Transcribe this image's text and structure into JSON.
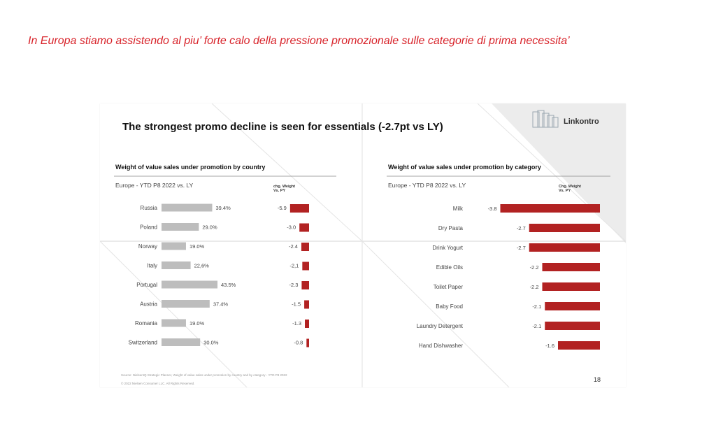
{
  "headline": "In Europa stiamo assistendo al piu’ forte calo della pressione  promozionale sulle categorie di prima necessita’",
  "slide": {
    "title": "The strongest promo decline is seen for essentials (-2.7pt vs LY)",
    "logo_text": "Linkontro",
    "page_number": "18",
    "source": "Source: NielsenIQ Strategic Planner, Weight of value sales under promotion by country and by category - YTD P8 2022",
    "copyright": "© 2022 Nielsen Consumer LLC. All Rights Reserved."
  },
  "colors": {
    "headline": "#d8232a",
    "share_bar": "#bdbdbd",
    "change_bar": "#b22222",
    "text": "#444444"
  },
  "chart_data": [
    {
      "type": "bar",
      "title": "Weight of value sales under promotion by country",
      "subtitle": "Europe - YTD P8 2022 vs. LY",
      "change_header": "chg. Weight Vs. PY",
      "categories": [
        "Russia",
        "Poland",
        "Norway",
        "Italy",
        "Portugal",
        "Austria",
        "Romania",
        "Switzerland"
      ],
      "value_labels": [
        "39.4%",
        "29.0%",
        "19.0%",
        "22,6%",
        "43.5%",
        "37.4%",
        "19.0%",
        "30.0%"
      ],
      "series": [
        {
          "values": [
            39.4,
            29.0,
            19.0,
            22.6,
            43.5,
            37.4,
            19.0,
            30.0
          ]
        },
        {
          "values": [
            -5.9,
            -3.0,
            -2.4,
            -2.1,
            -2.3,
            -1.5,
            -1.3,
            -0.8
          ]
        }
      ],
      "change_labels": [
        "-5.9",
        "-3.0",
        "-2.4",
        "-2,1",
        "-2.3",
        "-1.5",
        "-1.3",
        "-0.8"
      ]
    },
    {
      "type": "bar",
      "title": "Weight of value sales under promotion by category",
      "subtitle": "Europe - YTD P8 2022 vs. LY",
      "change_header": "Chg. Weight Vs. PY",
      "categories": [
        "Milk",
        "Dry Pasta",
        "Drink Yogurt",
        "Edible Oils",
        "Toilet Paper",
        "Baby Food",
        "Laundry Detergent",
        "Hand Dishwasher"
      ],
      "series": [
        {
          "values": [
            -3.8,
            -2.7,
            -2.7,
            -2.2,
            -2.2,
            -2.1,
            -2.1,
            -1.6
          ]
        }
      ],
      "change_labels": [
        "-3.8",
        "-2.7",
        "-2.7",
        "-2.2",
        "-2.2",
        "-2.1",
        "-2.1",
        "-1.6"
      ]
    }
  ]
}
